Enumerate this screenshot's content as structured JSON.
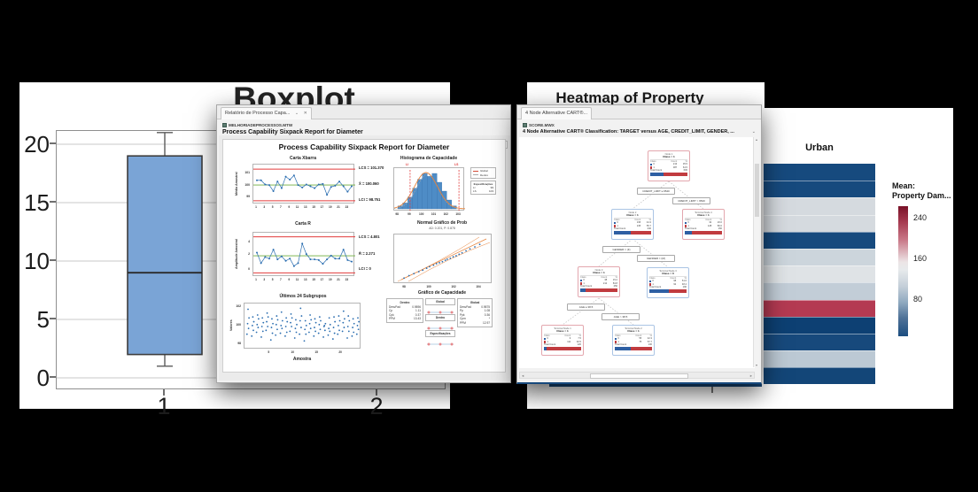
{
  "background_color": "#000000",
  "boxplot_panel": {
    "title": "Boxplot"
  },
  "capability_window": {
    "tab_title": "Relatório de Processo Capa...",
    "tab_min_icon": "⌄",
    "tab_close_icon": "✕",
    "worksheet": "MELHORIADEPROCESSOS.MTW",
    "heading": "Process Capability Sixpack Report for Diameter",
    "canvas_title": "Process Capability Sixpack Report for Diameter",
    "collapse_icon": "⌄"
  },
  "cart_window": {
    "tab_title": "4 Node Alternative CART®...",
    "worksheet": "SCORE.MWX",
    "heading": "4 Node Alternative CART® Classification: TARGET versus AGE, CREDIT_LIMIT, GENDER, ...",
    "collapse_icon": "⌄",
    "tree": {
      "table_headers": [
        "Class",
        "Count",
        "%"
      ],
      "total_label": "Total Count",
      "class0_color": "#2e5fa3",
      "class1_color": "#c13b3f",
      "splits": [
        "CREDIT_LIMIT ≤ 9540",
        "CREDIT_LIMIT > 9540",
        "GENDER = (F)",
        "GENDER = (M)",
        "AGE ≤ 38.5",
        "AGE > 38.5"
      ],
      "nodes": [
        {
          "title": "Node 1",
          "pred": "Class = 1",
          "border": "pink",
          "rows": [
            [
              "0",
              "213",
              "35.5"
            ],
            [
              "1",
              "387",
              "64.5"
            ]
          ],
          "total": "600",
          "blue_pct": 35.5
        },
        {
          "title": "Node 2",
          "pred": "Class = 1",
          "border": "blue",
          "rows": [
            [
              "0",
              "195",
              "44.3"
            ],
            [
              "1",
              "245",
              "55.7"
            ]
          ],
          "total": "440",
          "blue_pct": 44.3
        },
        {
          "title": "Terminal Node 4",
          "pred": "Class = 1",
          "border": "pink",
          "rows": [
            [
              "0",
              "32",
              "20.0"
            ],
            [
              "1",
              "128",
              "80.0"
            ]
          ],
          "total": "160",
          "blue_pct": 20.0
        },
        {
          "title": "Node 3",
          "pred": "Class = 1",
          "border": "pink",
          "rows": [
            [
              "0",
              "38",
              "15.2"
            ],
            [
              "1",
              "212",
              "84.8"
            ]
          ],
          "total": "250",
          "blue_pct": 15.2
        },
        {
          "title": "Terminal Node 3",
          "pred": "Class = 0",
          "border": "blue",
          "rows": [
            [
              "0",
              "98",
              "51.6"
            ],
            [
              "1",
              "92",
              "48.4"
            ]
          ],
          "total": "190",
          "blue_pct": 51.6
        },
        {
          "title": "Terminal Node 1",
          "pred": "Class = 1",
          "border": "pink",
          "rows": [
            [
              "0",
              "9",
              "7.5"
            ],
            [
              "1",
              "111",
              "92.5"
            ]
          ],
          "total": "120",
          "blue_pct": 7.5
        },
        {
          "title": "Terminal Node 2",
          "pred": "Class = 1",
          "border": "blue",
          "rows": [
            [
              "0",
              "55",
              "42.3"
            ],
            [
              "1",
              "75",
              "57.7"
            ]
          ],
          "total": "130",
          "blue_pct": 42.3
        }
      ]
    }
  },
  "heatmap_panel": {
    "title": "Heatmap of Property Damage",
    "column_label": "Urban",
    "legend_title_line1": "Mean:",
    "legend_title_line2": "Property Dam...",
    "legend_ticks": [
      "240",
      "160",
      "80"
    ]
  },
  "chart_data": [
    {
      "name": "boxplot",
      "type": "box",
      "title": "Boxplot",
      "categories": [
        "1",
        "2"
      ],
      "yticks": [
        0,
        5,
        10,
        15,
        20
      ],
      "ylim": [
        -1.1,
        21.1
      ],
      "boxes": [
        {
          "category": "1",
          "whisker_low": 1,
          "q1": 2,
          "median": 9,
          "q3": 19,
          "whisker_high": 21
        }
      ],
      "box_fill": "#7aa4d6"
    },
    {
      "name": "carta-xbarra",
      "type": "line",
      "title": "Carta Xbarra",
      "ylabel": "Média Amostral",
      "yticks": [
        99,
        100,
        101
      ],
      "xticks": [
        1,
        3,
        5,
        7,
        9,
        11,
        13,
        15,
        17,
        19,
        21,
        23
      ],
      "ucl": 101.37,
      "center": 100.06,
      "lcl": 98.751,
      "ucl_label": "LCS = 101.370",
      "center_label": "X̄ = 100.060",
      "lcl_label": "LCI = 98.751",
      "values": [
        100.45,
        100.45,
        100.1,
        100.05,
        99.55,
        100.35,
        99.8,
        100.75,
        100.5,
        100.85,
        100.05,
        99.85,
        100.1,
        99.95,
        99.8,
        100.1,
        100.15,
        99.25,
        99.9,
        100.0,
        100.35,
        99.95,
        99.5,
        99.95
      ]
    },
    {
      "name": "carta-r",
      "type": "line",
      "title": "Carta R",
      "ylabel": "Amplitude Amostral",
      "yticks": [
        0,
        2,
        4
      ],
      "xticks": [
        1,
        3,
        5,
        7,
        9,
        11,
        13,
        15,
        17,
        19,
        21,
        23
      ],
      "ucl": 4.801,
      "center": 2.271,
      "lcl": 0,
      "ucl_label": "LCS = 4.801",
      "center_label": "R̄ = 2.271",
      "lcl_label": "LCI = 0",
      "values": [
        2.7,
        1.3,
        2.1,
        1.9,
        3.1,
        1.8,
        2.2,
        1.6,
        1.9,
        0.9,
        1.3,
        3.9,
        2.5,
        1.8,
        1.8,
        1.7,
        1.2,
        1.8,
        2.3,
        1.9,
        1.9,
        3.1,
        1.7,
        1.5
      ]
    },
    {
      "name": "ultimos-24-subgrupos",
      "type": "scatter",
      "title": "Últimos 24 Subgrupos",
      "ylabel": "Valores",
      "xlabel": "Amostra",
      "yticks": [
        98,
        100,
        102
      ],
      "xticks": [
        5,
        10,
        15,
        20
      ],
      "groups": [
        [
          99.2,
          99.8,
          100.3,
          100.9,
          101.8
        ],
        [
          99.0,
          99.6,
          100.1,
          100.5,
          101.0
        ],
        [
          99.4,
          99.9,
          100.2,
          100.8,
          101.2
        ],
        [
          98.9,
          99.5,
          100.0,
          100.4,
          100.9
        ],
        [
          99.6,
          100.0,
          100.5,
          101.0,
          101.4
        ],
        [
          98.6,
          99.3,
          99.9,
          100.3,
          100.8
        ],
        [
          99.1,
          99.7,
          100.2,
          100.7,
          101.1
        ],
        [
          99.3,
          99.8,
          100.1,
          100.6,
          101.5
        ],
        [
          99.0,
          99.4,
          100.0,
          100.5,
          100.9
        ],
        [
          99.5,
          100.0,
          100.4,
          100.9,
          101.3
        ],
        [
          98.8,
          99.4,
          99.8,
          100.2,
          100.7
        ],
        [
          99.2,
          99.9,
          100.6,
          101.1,
          101.9
        ],
        [
          98.5,
          99.2,
          99.7,
          100.1,
          100.6
        ],
        [
          99.4,
          99.8,
          100.3,
          100.7,
          101.2
        ],
        [
          99.0,
          99.5,
          99.9,
          100.4,
          100.8
        ],
        [
          99.3,
          99.7,
          100.2,
          100.6,
          101.0
        ],
        [
          98.9,
          99.6,
          100.0,
          100.3,
          100.1
        ],
        [
          99.1,
          99.5,
          99.8,
          100.2,
          100.9
        ],
        [
          98.7,
          99.3,
          99.9,
          100.5,
          101.0
        ],
        [
          99.2,
          99.6,
          100.1,
          100.6,
          101.1
        ],
        [
          99.5,
          99.9,
          100.4,
          100.8,
          101.6
        ],
        [
          98.8,
          99.5,
          100.0,
          100.6,
          101.1
        ],
        [
          99.0,
          99.4,
          99.9,
          100.3,
          100.8
        ],
        [
          99.2,
          99.7,
          100.1,
          100.5,
          100.9
        ]
      ]
    },
    {
      "name": "histograma-de-capacidade",
      "type": "histogram",
      "title": "Histograma de Capacidade",
      "xticks": [
        98,
        99,
        100,
        101,
        102,
        103
      ],
      "bin_start": 98,
      "bin_width": 0.4,
      "counts": [
        1,
        2,
        4,
        7,
        10,
        12,
        11,
        12,
        9,
        6,
        3,
        1
      ],
      "li_label": "LI",
      "ls_label": "LS",
      "li": 99,
      "ls": 103,
      "legend": [
        {
          "label": "Global",
          "color": "#d34a35"
        },
        {
          "label": "Dentro",
          "color": "#aaaaaa"
        }
      ],
      "specs_title": "Especificações",
      "specs": [
        [
          "LI",
          "99"
        ],
        [
          "LS",
          "103"
        ]
      ]
    },
    {
      "name": "normal-grafico-de-prob",
      "type": "scatter",
      "title": "Normal Gráfico de Prob",
      "subtitle": "AD: 0.201, P: 0.878",
      "xticks": [
        98,
        100,
        102,
        104
      ],
      "points_pct": [
        [
          10,
          88
        ],
        [
          15,
          83
        ],
        [
          20,
          79
        ],
        [
          25,
          75
        ],
        [
          29,
          72
        ],
        [
          33,
          68
        ],
        [
          36,
          65
        ],
        [
          40,
          62
        ],
        [
          43,
          59
        ],
        [
          46,
          57
        ],
        [
          49,
          55
        ],
        [
          52,
          52
        ],
        [
          54,
          50
        ],
        [
          57,
          48
        ],
        [
          60,
          45
        ],
        [
          63,
          43
        ],
        [
          66,
          40
        ],
        [
          69,
          37
        ],
        [
          73,
          33
        ],
        [
          77,
          29
        ],
        [
          82,
          25
        ],
        [
          87,
          20
        ]
      ]
    },
    {
      "name": "grafico-de-capacidade",
      "type": "interval",
      "title": "Gráfico de Capacidade",
      "interval_labels": [
        "Global",
        "Dentro",
        "Especificações"
      ],
      "stats_left_title": "Dentro",
      "stats_left": [
        [
          "DesvPad",
          "0.9896"
        ],
        [
          "Cp",
          "1.11"
        ],
        [
          "Cpk",
          "0.37"
        ],
        [
          "PPM",
          "13.43"
        ]
      ],
      "stats_right_title": "Global",
      "stats_right": [
        [
          "DesvPad",
          "0.9875"
        ],
        [
          "Pp",
          "1.08"
        ],
        [
          "Ppk",
          "0.36"
        ],
        [
          "Cpm",
          "*"
        ],
        [
          "PPM",
          "12.97"
        ]
      ]
    },
    {
      "name": "heatmap-urban",
      "type": "heatmap",
      "title": "Heatmap of Property Damage",
      "column": "Urban",
      "legend_label": "Mean: Property Dam...",
      "legend_ticks": [
        240,
        160,
        80
      ],
      "cell_colors": [
        "#164a7e",
        "#164a7e",
        "#d5dadf",
        "#d5dadf",
        "#164a7e",
        "#ccd5dc",
        "#dfe3e6",
        "#c2cdd7",
        "#b43a52",
        "#0d4073",
        "#17497c",
        "#bcc9d4",
        "#134678"
      ]
    }
  ]
}
